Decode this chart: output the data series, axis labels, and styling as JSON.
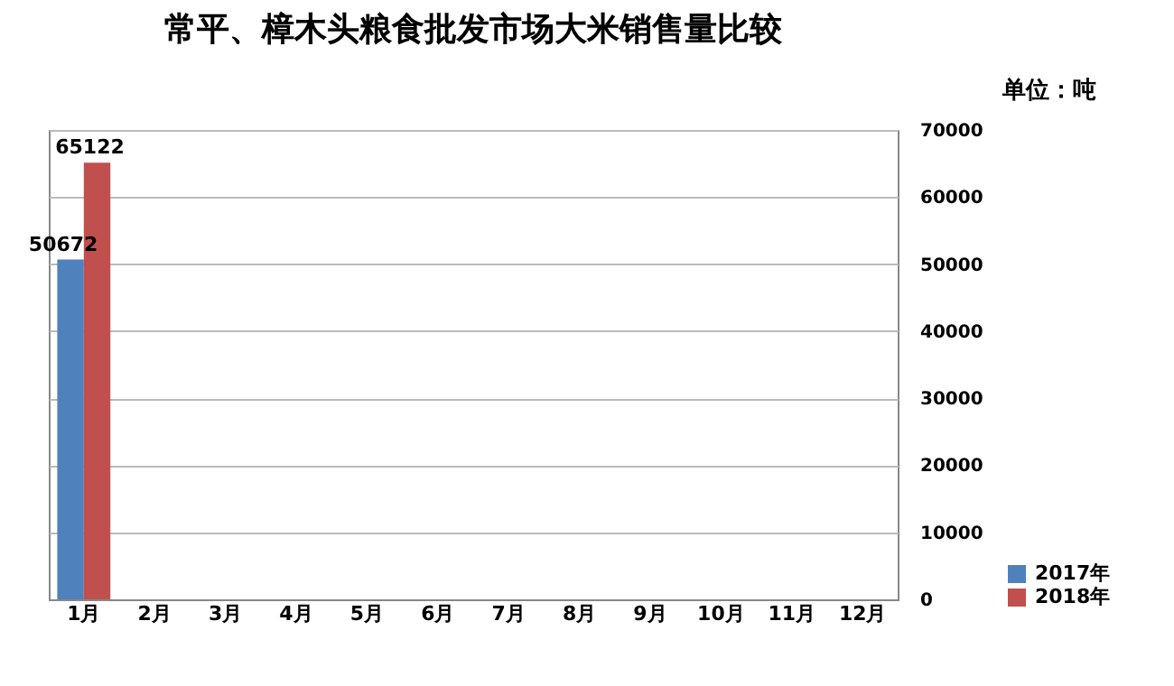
{
  "chart_data": {
    "type": "bar",
    "title": "常平、樟木头粮食批发市场大米销售量比较",
    "annotations": [
      "单位：吨"
    ],
    "categories": [
      "1月",
      "2月",
      "3月",
      "4月",
      "5月",
      "6月",
      "7月",
      "8月",
      "9月",
      "10月",
      "11月",
      "12月"
    ],
    "series": [
      {
        "name": "2017年",
        "color": "#4f81bd",
        "values": [
          50672,
          null,
          null,
          null,
          null,
          null,
          null,
          null,
          null,
          null,
          null,
          null
        ]
      },
      {
        "name": "2018年",
        "color": "#c0504d",
        "values": [
          65122,
          null,
          null,
          null,
          null,
          null,
          null,
          null,
          null,
          null,
          null,
          null
        ]
      }
    ],
    "ylim": [
      0,
      70000
    ],
    "yticks": [
      0,
      10000,
      20000,
      30000,
      40000,
      50000,
      60000,
      70000
    ],
    "grid": "y",
    "legend": "bottom right",
    "data_labels": true
  }
}
